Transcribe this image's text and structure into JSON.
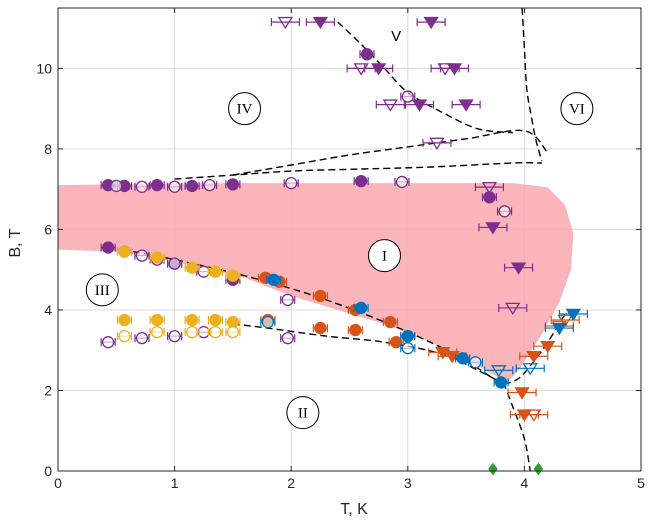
{
  "chart_data": {
    "type": "scatter",
    "title": "",
    "xlabel": "T, K",
    "ylabel": "B, T",
    "xlim": [
      0,
      5
    ],
    "ylim": [
      0,
      11.5
    ],
    "xticks": [
      "0",
      "1",
      "2",
      "3",
      "4",
      "5"
    ],
    "yticks": [
      "0",
      "2",
      "4",
      "6",
      "8",
      "10"
    ],
    "xtick_values": [
      0,
      1,
      2,
      3,
      4,
      5
    ],
    "ytick_values": [
      0,
      2,
      4,
      6,
      8,
      10
    ],
    "grid": true,
    "colors": {
      "purple": "#7E2F8E",
      "orange": "#D95319",
      "yellow": "#EDB120",
      "blue": "#0072BD",
      "green": "#2CA02C",
      "shade": "#F8A8AE"
    },
    "phase_labels": [
      {
        "text": "I",
        "x": 2.8,
        "y": 5.35,
        "circled": true
      },
      {
        "text": "II",
        "x": 2.1,
        "y": 1.45,
        "circled": true
      },
      {
        "text": "III",
        "x": 0.38,
        "y": 4.5,
        "circled": true
      },
      {
        "text": "IV",
        "x": 1.6,
        "y": 9.0,
        "circled": true
      },
      {
        "text": "V",
        "x": 2.9,
        "y": 10.8,
        "circled": false
      },
      {
        "text": "VI",
        "x": 4.45,
        "y": 9.0,
        "circled": true
      }
    ],
    "shaded_region": {
      "x": [
        0,
        1.2,
        2.5,
        3.5,
        3.9,
        4.2,
        4.35,
        4.42,
        4.4,
        4.3,
        4.15,
        3.95,
        3.85,
        3.55,
        3.2,
        2.8,
        2.0,
        1.6,
        1.0,
        0.5,
        0
      ],
      "y": [
        7.1,
        7.15,
        7.15,
        7.15,
        7.15,
        7.05,
        6.6,
        5.9,
        5.0,
        4.2,
        3.4,
        2.5,
        2.2,
        2.7,
        3.2,
        3.65,
        4.35,
        4.8,
        5.2,
        5.45,
        5.5
      ]
    },
    "boundaries": [
      {
        "name": "",
        "x": [
          0.55,
          1.0,
          1.6,
          2.2,
          2.8,
          3.3,
          3.6,
          3.8,
          3.95,
          4.1,
          4.2,
          4.35
        ],
        "y": [
          5.5,
          5.25,
          4.85,
          4.35,
          3.7,
          3.05,
          2.55,
          2.2,
          2.3,
          2.8,
          3.2,
          3.9
        ]
      },
      {
        "name": "",
        "x": [
          1.5,
          1.8,
          2.3,
          2.8,
          3.3,
          3.6,
          3.8
        ],
        "y": [
          3.65,
          3.55,
          3.35,
          3.2,
          2.9,
          2.5,
          2.2
        ]
      },
      {
        "name": "",
        "x": [
          3.82,
          3.9,
          4.0,
          4.05
        ],
        "y": [
          2.2,
          1.6,
          0.8,
          0.0
        ]
      },
      {
        "name": "",
        "x": [
          1.0,
          1.5,
          2.0,
          2.6,
          3.2,
          3.9,
          4.15
        ],
        "y": [
          7.25,
          7.35,
          7.45,
          7.5,
          7.55,
          7.65,
          7.65
        ]
      },
      {
        "name": "",
        "x": [
          1.5,
          2.0,
          2.5,
          3.0,
          3.5,
          4.0,
          4.2
        ],
        "y": [
          7.35,
          7.6,
          7.85,
          8.05,
          8.25,
          8.45,
          7.9
        ]
      },
      {
        "name": "",
        "x": [
          2.4,
          2.6,
          2.8,
          3.0,
          3.3,
          3.6,
          3.9
        ],
        "y": [
          11.15,
          10.6,
          10.0,
          9.4,
          8.9,
          8.5,
          8.4
        ]
      },
      {
        "name": "",
        "x": [
          3.98,
          4.0,
          4.02,
          4.06,
          4.1,
          4.15
        ],
        "y": [
          11.5,
          10.5,
          9.5,
          8.8,
          8.2,
          7.7
        ]
      }
    ],
    "series": [
      {
        "name": "",
        "color": "#7E2F8E",
        "marker": "circle-filled",
        "x": [
          0.43,
          0.57,
          0.85,
          1.15,
          1.5,
          2.6,
          3.7
        ],
        "y": [
          7.1,
          7.08,
          7.1,
          7.08,
          7.12,
          7.2,
          6.8
        ],
        "xerr": 0.06
      },
      {
        "name": "",
        "color": "#7E2F8E",
        "marker": "circle-open",
        "x": [
          0.5,
          0.72,
          1.0,
          1.3,
          2.0,
          2.95,
          3.83
        ],
        "y": [
          7.08,
          7.06,
          7.06,
          7.1,
          7.15,
          7.18,
          6.45
        ],
        "xerr": 0.06
      },
      {
        "name": "",
        "color": "#7E2F8E",
        "marker": "circle-filled",
        "x": [
          0.43,
          0.57,
          1.0,
          1.5,
          2.65
        ],
        "y": [
          5.55,
          5.45,
          5.15,
          4.75,
          10.35
        ],
        "xerr": 0.06
      },
      {
        "name": "",
        "color": "#7E2F8E",
        "marker": "circle-open",
        "x": [
          0.72,
          0.85,
          1.0,
          1.25,
          1.97,
          3.0
        ],
        "y": [
          5.35,
          5.25,
          5.15,
          4.95,
          4.25,
          9.3
        ],
        "xerr": 0.06
      },
      {
        "name": "",
        "color": "#7E2F8E",
        "marker": "circle-open",
        "x": [
          0.43,
          0.72,
          1.0,
          1.25,
          1.97
        ],
        "y": [
          3.2,
          3.3,
          3.35,
          3.45,
          3.3
        ],
        "xerr": 0.06
      },
      {
        "name": "",
        "color": "#7E2F8E",
        "marker": "triangle-filled",
        "x": [
          2.25,
          2.75,
          3.2,
          3.4,
          3.1,
          3.5,
          3.73,
          3.95
        ],
        "y": [
          11.15,
          10.0,
          11.15,
          10.0,
          9.1,
          9.1,
          6.05,
          5.05
        ],
        "xerr": 0.12
      },
      {
        "name": "",
        "color": "#7E2F8E",
        "marker": "triangle-open",
        "x": [
          1.95,
          2.6,
          3.32,
          2.85,
          3.25,
          3.7,
          3.9
        ],
        "y": [
          11.15,
          10.0,
          10.0,
          9.1,
          8.15,
          7.05,
          4.05
        ],
        "xerr": 0.12
      },
      {
        "name": "",
        "color": "#EDB120",
        "marker": "circle-filled",
        "x": [
          0.57,
          0.85,
          1.15,
          1.35,
          1.5
        ],
        "y": [
          5.45,
          5.3,
          5.05,
          4.95,
          4.85
        ],
        "xerr": 0.06
      },
      {
        "name": "",
        "color": "#EDB120",
        "marker": "circle-filled",
        "x": [
          0.57,
          0.85,
          1.15,
          1.35,
          1.5
        ],
        "y": [
          3.75,
          3.75,
          3.75,
          3.75,
          3.7
        ],
        "xerr": 0.06
      },
      {
        "name": "",
        "color": "#EDB120",
        "marker": "circle-open",
        "x": [
          0.57,
          0.85,
          1.15,
          1.35,
          1.5
        ],
        "y": [
          3.35,
          3.45,
          3.45,
          3.45,
          3.45
        ],
        "xerr": 0.06
      },
      {
        "name": "",
        "color": "#D95319",
        "marker": "circle-filled",
        "x": [
          1.78,
          1.9,
          2.25,
          2.55,
          2.85,
          3.0
        ],
        "y": [
          4.8,
          4.7,
          4.35,
          4.0,
          3.7,
          3.35
        ],
        "xerr": 0.06
      },
      {
        "name": "",
        "color": "#D95319",
        "marker": "circle-filled",
        "x": [
          1.8,
          2.25,
          2.55,
          2.9
        ],
        "y": [
          3.75,
          3.55,
          3.5,
          3.2
        ],
        "xerr": 0.06
      },
      {
        "name": "",
        "color": "#D95319",
        "marker": "triangle-filled",
        "x": [
          3.3,
          3.38,
          3.98,
          4.0,
          4.08,
          4.2
        ],
        "y": [
          2.95,
          2.85,
          1.95,
          1.4,
          2.85,
          3.1
        ],
        "xerr": 0.12
      },
      {
        "name": "",
        "color": "#D95319",
        "marker": "triangle-open",
        "x": [
          4.08,
          4.3,
          4.35
        ],
        "y": [
          1.4,
          3.6,
          3.75
        ],
        "xerr": 0.12
      },
      {
        "name": "",
        "color": "#0072BD",
        "marker": "circle-filled",
        "x": [
          1.85,
          2.6,
          3.0,
          3.47,
          3.8
        ],
        "y": [
          4.75,
          4.05,
          3.35,
          2.8,
          2.2
        ],
        "xerr": 0.06
      },
      {
        "name": "",
        "color": "#0072BD",
        "marker": "circle-open",
        "x": [
          1.8,
          3.0,
          3.58
        ],
        "y": [
          3.7,
          3.05,
          2.7
        ],
        "xerr": 0.06
      },
      {
        "name": "",
        "color": "#0072BD",
        "marker": "triangle-filled",
        "x": [
          4.42,
          4.3
        ],
        "y": [
          3.9,
          3.55
        ],
        "xerr": 0.12
      },
      {
        "name": "",
        "color": "#0072BD",
        "marker": "triangle-open",
        "x": [
          3.78,
          4.05
        ],
        "y": [
          2.5,
          2.55
        ],
        "xerr": 0.12
      },
      {
        "name": "",
        "color": "#2CA02C",
        "marker": "diamond",
        "x": [
          3.73,
          4.12
        ],
        "y": [
          0.05,
          0.05
        ],
        "xerr": 0
      }
    ]
  }
}
